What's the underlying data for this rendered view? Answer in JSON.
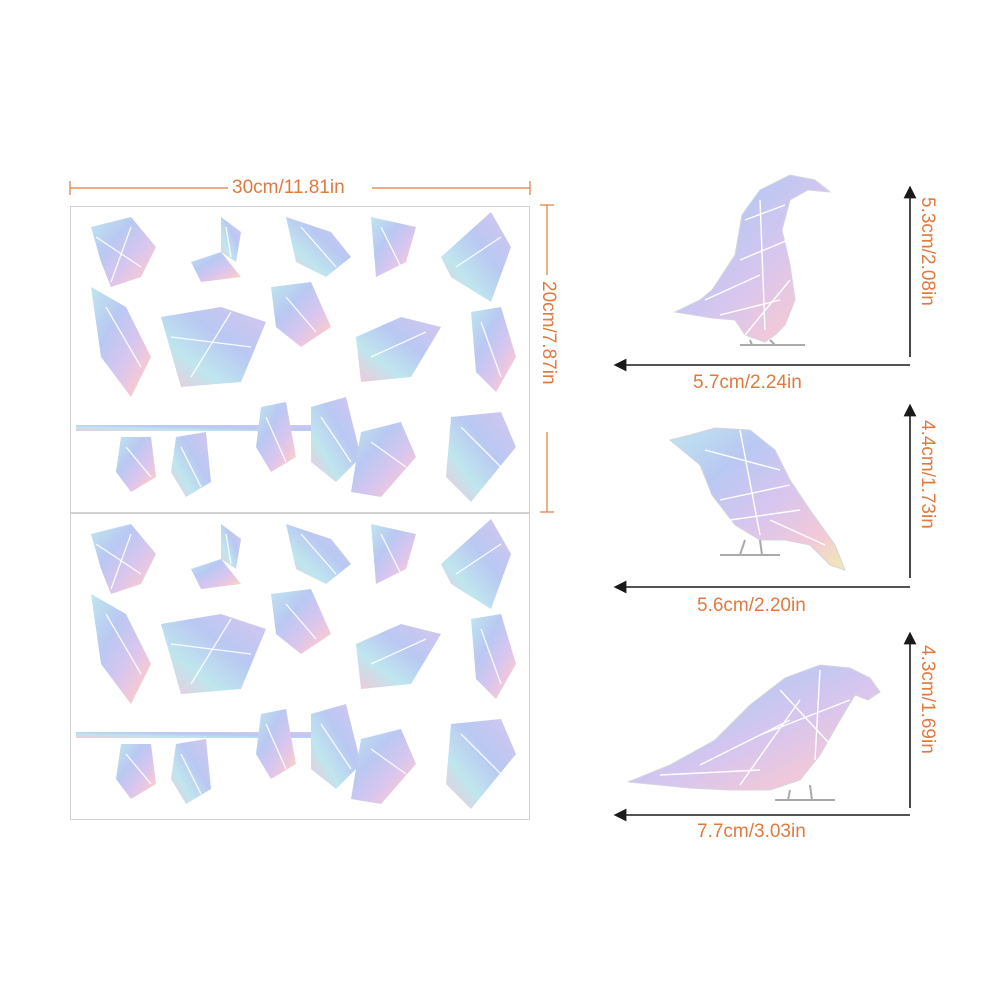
{
  "sheet": {
    "width_label": "30cm/11.81in",
    "height_label": "20cm/7.87in",
    "sheet_count": 2
  },
  "birds": [
    {
      "width_label": "5.7cm/2.24in",
      "height_label": "5.3cm/2.08in",
      "pose": "crow"
    },
    {
      "width_label": "5.6cm/2.20in",
      "height_label": "4.4cm/1.73in",
      "pose": "perched"
    },
    {
      "width_label": "7.7cm/3.03in",
      "height_label": "4.3cm/1.69in",
      "pose": "parrot"
    }
  ],
  "colors": {
    "dimension": "#e07a3f",
    "sheet_border": "#d0d0d0",
    "arrow": "#1a1a1a",
    "iridescent_blue": "#b9c8f2",
    "iridescent_violet": "#d6c6ef",
    "iridescent_yellow": "#f1ecb0",
    "iridescent_pink": "#f2c8d8",
    "iridescent_cyan": "#bfe6ee",
    "crack": "#ffffff"
  }
}
